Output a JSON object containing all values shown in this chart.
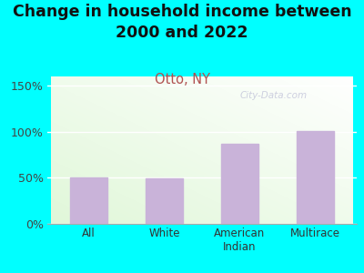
{
  "title": "Change in household income between\n2000 and 2022",
  "subtitle": "Otto, NY",
  "categories": [
    "All",
    "White",
    "American\nIndian",
    "Multirace"
  ],
  "values": [
    50,
    49,
    87,
    101
  ],
  "bar_color": "#c9b3d9",
  "yticks": [
    0,
    50,
    100,
    150
  ],
  "yticklabels": [
    "0%",
    "50%",
    "100%",
    "150%"
  ],
  "ylim": [
    0,
    160
  ],
  "background_outer": "#00FFFF",
  "watermark": "City-Data.com",
  "title_fontsize": 12.5,
  "subtitle_fontsize": 10.5,
  "subtitle_color": "#b05050",
  "tick_fontsize": 9,
  "xtick_fontsize": 8.5
}
